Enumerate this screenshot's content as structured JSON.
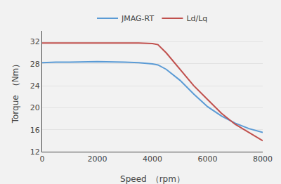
{
  "chart_data": {
    "type": "line",
    "x": [
      0,
      500,
      1000,
      2000,
      3000,
      3500,
      4000,
      4200,
      4500,
      5000,
      5500,
      6000,
      6500,
      7000,
      7500,
      8000
    ],
    "series": [
      {
        "name": "JMAG-RT",
        "color": "#5b9bd5",
        "values": [
          28.2,
          28.3,
          28.3,
          28.4,
          28.3,
          28.2,
          28.0,
          27.8,
          27.0,
          25.0,
          22.5,
          20.2,
          18.5,
          17.2,
          16.2,
          15.5
        ]
      },
      {
        "name": "Ld/Lq",
        "color": "#c0504d",
        "values": [
          31.8,
          31.8,
          31.8,
          31.8,
          31.8,
          31.8,
          31.7,
          31.5,
          30.0,
          27.0,
          24.0,
          21.5,
          19.0,
          17.0,
          15.5,
          14.0
        ]
      }
    ],
    "xlabel": "Speed （rpm）",
    "ylabel": "Torque （Nm）",
    "xlim": [
      0,
      8000
    ],
    "ylim": [
      12,
      34
    ],
    "xticks": [
      0,
      2000,
      4000,
      6000,
      8000
    ],
    "yticks": [
      12,
      16,
      20,
      24,
      28,
      32
    ],
    "grid": "y",
    "legend": "top"
  }
}
